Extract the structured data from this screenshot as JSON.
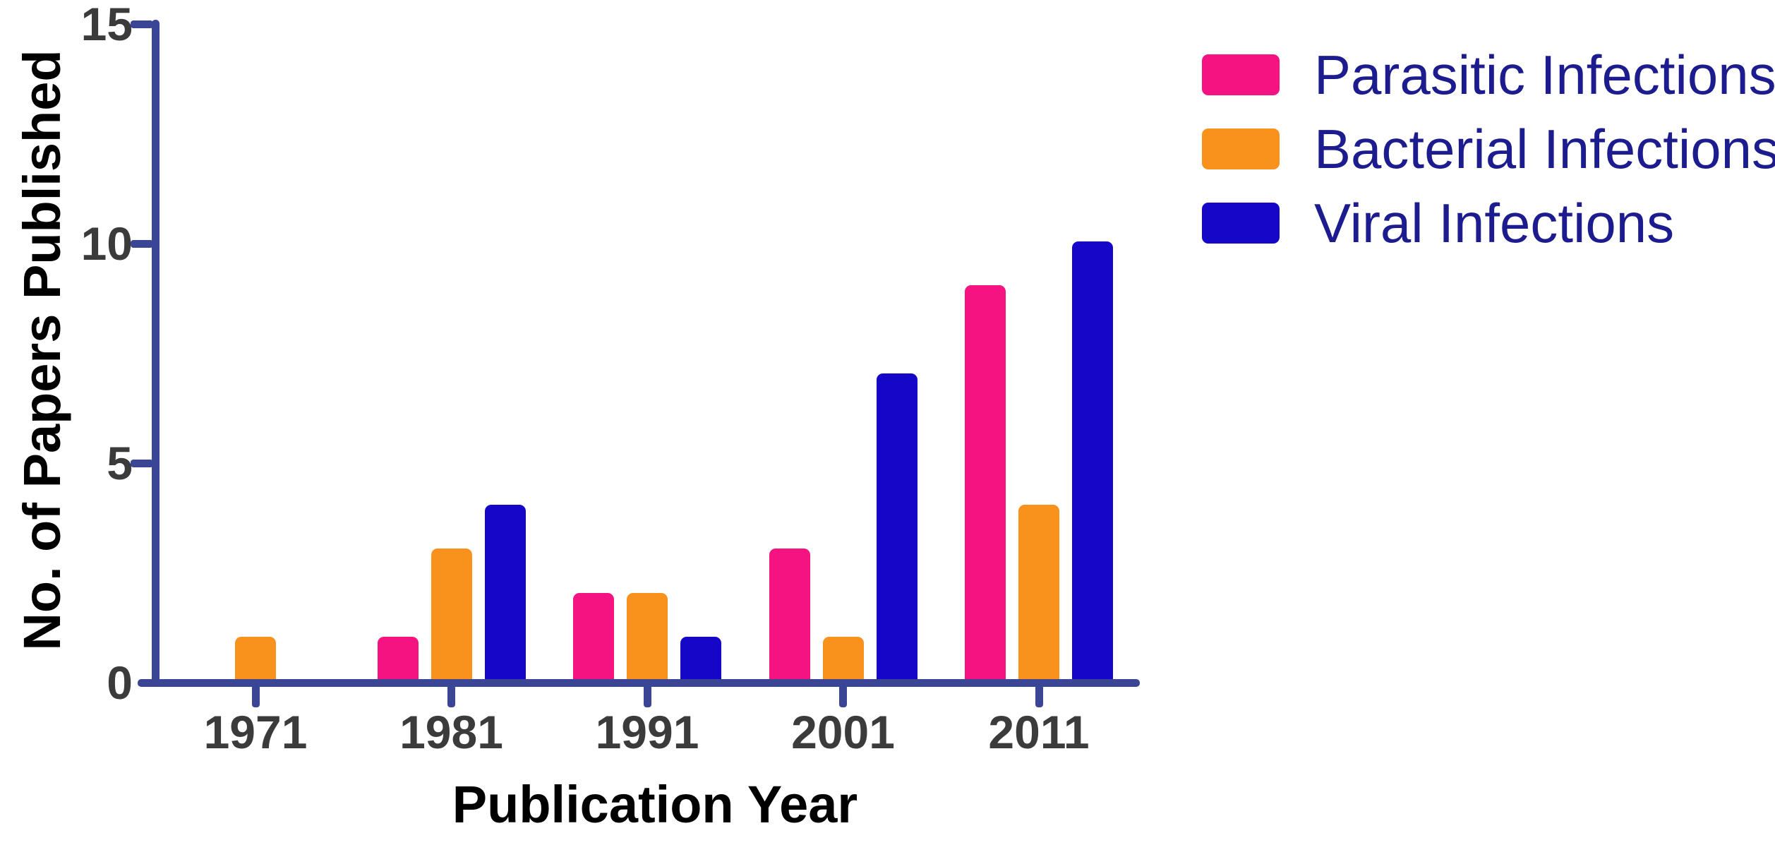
{
  "chart_data": {
    "type": "bar",
    "title": "",
    "xlabel": "Publication Year",
    "ylabel": "No. of Papers Published",
    "categories": [
      "1971",
      "1981",
      "1991",
      "2001",
      "2011"
    ],
    "series": [
      {
        "name": "Parasitic Infections",
        "color": "#F41381",
        "values": [
          0,
          1,
          2,
          3,
          9
        ]
      },
      {
        "name": "Bacterial Infections",
        "color": "#F8921D",
        "values": [
          1,
          3,
          2,
          1,
          4
        ]
      },
      {
        "name": "Viral Infections",
        "color": "#1506C8",
        "values": [
          0,
          4,
          1,
          7,
          10
        ]
      }
    ],
    "y_ticks": [
      0,
      5,
      10,
      15
    ],
    "ylim": [
      0,
      15
    ],
    "grid": false,
    "legend_position": "top-right"
  },
  "colors": {
    "axis": "#3A4596",
    "tick_label": "#3B3B3B",
    "axis_title": "#000000",
    "legend_text": "#1C1C8E",
    "background": "#FFFFFF"
  }
}
